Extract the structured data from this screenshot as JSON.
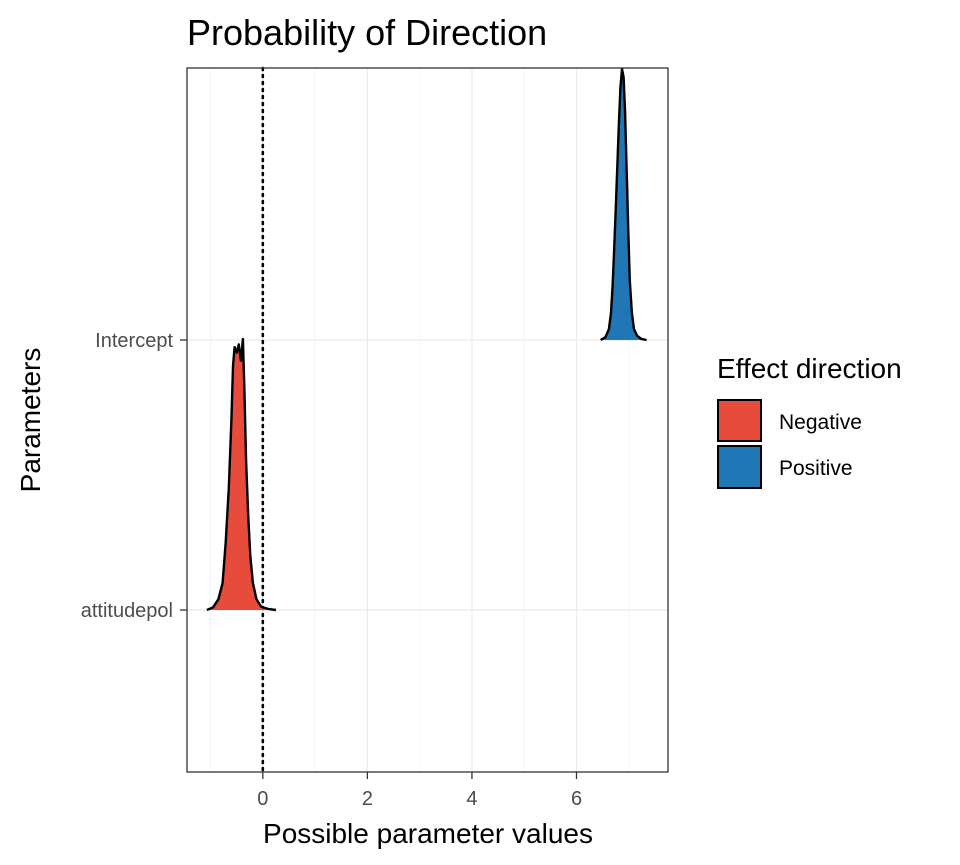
{
  "chart_data": {
    "type": "density-ridge",
    "title": "Probability of Direction",
    "xlabel": "Possible parameter values",
    "ylabel": "Parameters",
    "xlim": [
      -1.45,
      7.75
    ],
    "x_ticks": [
      "0",
      "2",
      "4",
      "6"
    ],
    "x_tick_values": [
      0,
      2,
      4,
      6
    ],
    "grid": true,
    "reference_line": {
      "x": 0,
      "style": "dotted"
    },
    "parameters": [
      "attitudepol",
      "Intercept"
    ],
    "legend": {
      "title": "Effect direction",
      "placement": "right",
      "entries": [
        {
          "label": "Negative",
          "color": "#E64B3C"
        },
        {
          "label": "Positive",
          "color": "#2176B5"
        }
      ]
    },
    "series": [
      {
        "parameter": "Intercept",
        "direction": "Positive",
        "color": "#2176B5",
        "density_x": [
          6.46,
          6.55,
          6.62,
          6.66,
          6.69,
          6.72,
          6.75,
          6.78,
          6.81,
          6.84,
          6.87,
          6.9,
          6.93,
          6.96,
          6.99,
          7.02,
          7.06,
          7.1,
          7.16,
          7.24,
          7.34
        ],
        "density_y": [
          0.0,
          0.01,
          0.04,
          0.1,
          0.2,
          0.33,
          0.48,
          0.64,
          0.8,
          0.93,
          1.0,
          0.97,
          0.84,
          0.62,
          0.4,
          0.22,
          0.1,
          0.04,
          0.015,
          0.004,
          0.0
        ]
      },
      {
        "parameter": "attitudepol",
        "direction": "Negative",
        "color": "#E64B3C",
        "density_x": [
          -1.07,
          -0.95,
          -0.85,
          -0.77,
          -0.71,
          -0.65,
          -0.6,
          -0.57,
          -0.54,
          -0.5,
          -0.46,
          -0.42,
          -0.38,
          -0.35,
          -0.32,
          -0.28,
          -0.24,
          -0.19,
          -0.12,
          -0.03,
          0.0,
          0.1,
          0.25
        ],
        "density_y": [
          0.0,
          0.01,
          0.04,
          0.1,
          0.25,
          0.45,
          0.7,
          0.9,
          0.97,
          0.95,
          0.98,
          0.92,
          1.0,
          0.8,
          0.55,
          0.35,
          0.2,
          0.1,
          0.04,
          0.012,
          0.01,
          0.004,
          0.0
        ]
      }
    ]
  }
}
